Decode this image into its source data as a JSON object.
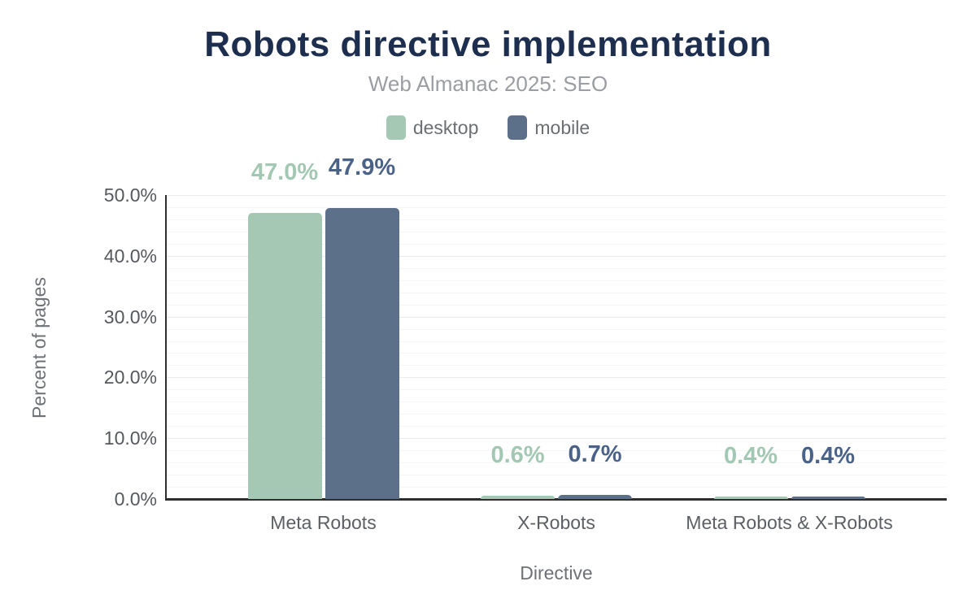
{
  "chart": {
    "title": "Robots directive implementation",
    "subtitle": "Web Almanac 2025: SEO"
  },
  "colors": {
    "title": "#1d2e4f",
    "axis_line": "#2e2e2e",
    "desktop_bar": "#a5c8b4",
    "desktop_label": "#a2c7b2",
    "mobile_bar": "#5d7089",
    "mobile_label": "#4a6188"
  },
  "chart_data": {
    "type": "bar",
    "title": "Robots directive implementation",
    "subtitle": "Web Almanac 2025: SEO",
    "categories": [
      "Meta Robots",
      "X-Robots",
      "Meta Robots & X-Robots"
    ],
    "series": [
      {
        "name": "desktop",
        "color": "#a5c8b4",
        "label_color": "#a2c7b2",
        "values": [
          47.0,
          0.6,
          0.4
        ],
        "labels": [
          "47.0%",
          "0.6%",
          "0.4%"
        ]
      },
      {
        "name": "mobile",
        "color": "#5d7089",
        "label_color": "#4a6188",
        "values": [
          47.9,
          0.7,
          0.4
        ],
        "labels": [
          "47.9%",
          "0.7%",
          "0.4%"
        ]
      }
    ],
    "xlabel": "Directive",
    "ylabel": "Percent of pages",
    "ylim": [
      0,
      50
    ],
    "yticks": [
      {
        "value": 0,
        "label": "0.0%"
      },
      {
        "value": 10,
        "label": "10.0%"
      },
      {
        "value": 20,
        "label": "20.0%"
      },
      {
        "value": 30,
        "label": "30.0%"
      },
      {
        "value": 40,
        "label": "40.0%"
      },
      {
        "value": 50,
        "label": "50.0%"
      }
    ],
    "grid": {
      "minor_step": 2,
      "major_step": 10,
      "enabled": true
    },
    "legend_position": "top",
    "value_labels_shown": true
  }
}
